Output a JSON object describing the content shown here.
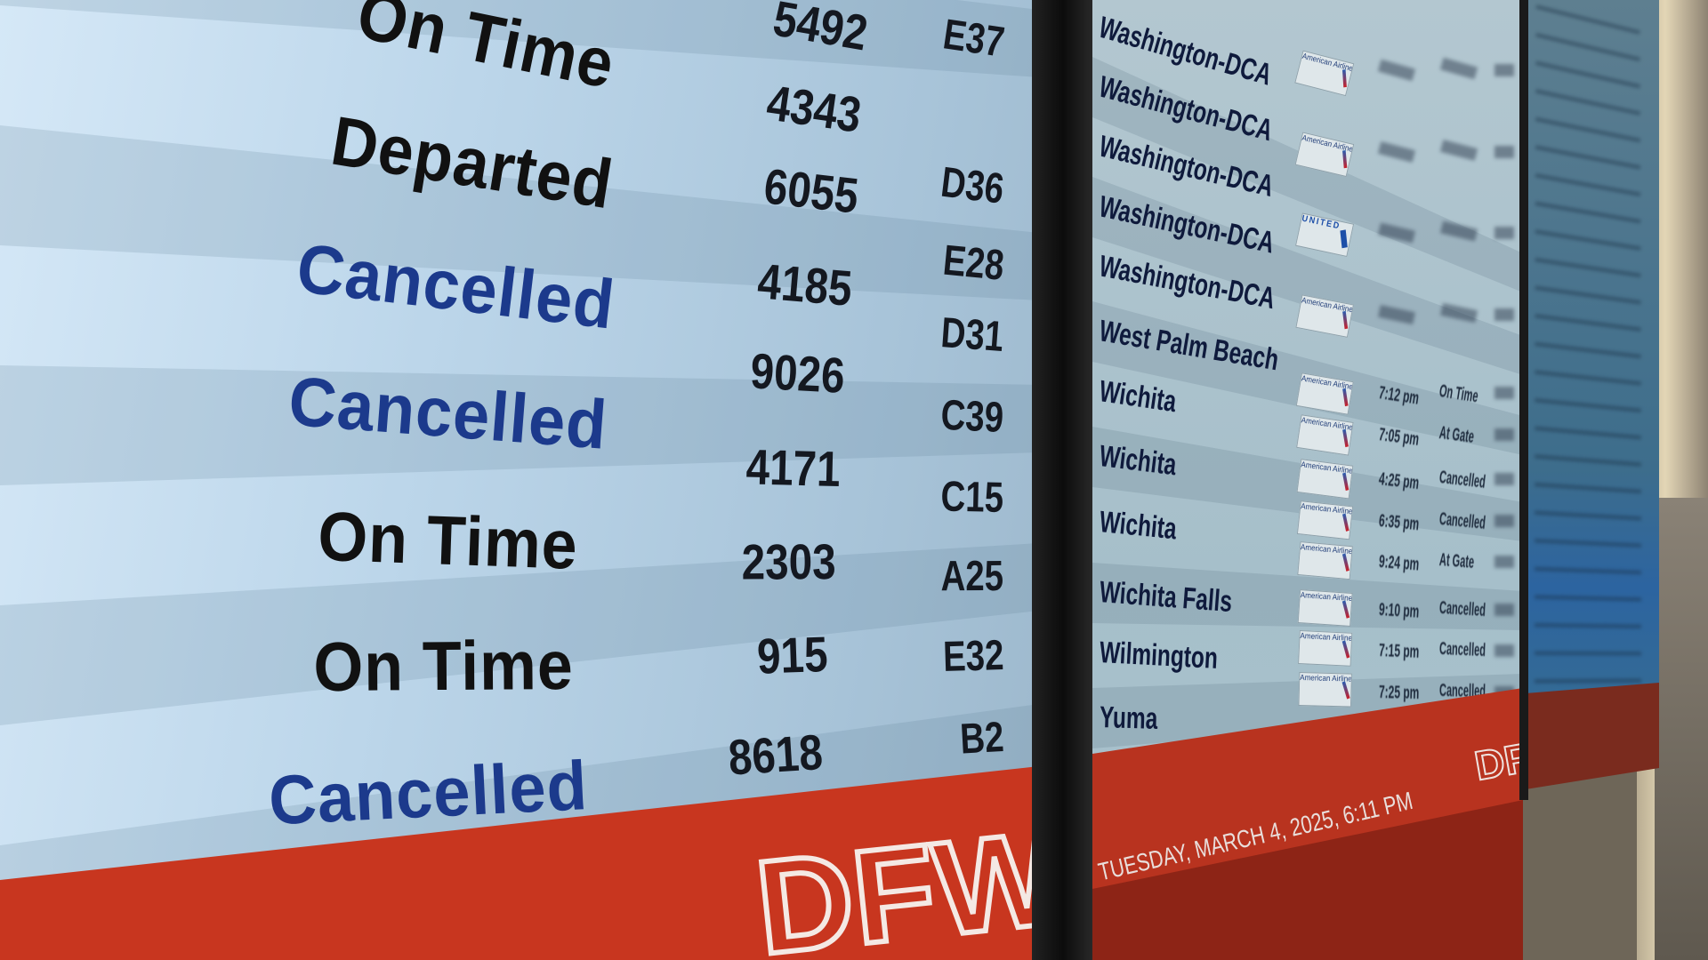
{
  "left_board": {
    "rows": [
      {
        "status": "",
        "flight": "5492",
        "gate": "E37"
      },
      {
        "status": "On Time",
        "flight": "4343",
        "gate": "D36"
      },
      {
        "status": "Departed",
        "flight": "6055",
        "gate": "E28"
      },
      {
        "status": "Cancelled",
        "flight": "4185",
        "gate": "D31"
      },
      {
        "status": "Cancelled",
        "flight": "9026",
        "gate": "C39"
      },
      {
        "status": "On Time",
        "flight": "4171",
        "gate": "C15"
      },
      {
        "status": "On Time",
        "flight": "2303",
        "gate": "A25"
      },
      {
        "status": "Cancelled",
        "flight": "915",
        "gate": "E32"
      },
      {
        "status": "",
        "flight": "8618",
        "gate": "B2"
      }
    ],
    "footer_logo": "DFW"
  },
  "right_board": {
    "rows": [
      {
        "city": "Washington-DCA",
        "airline": "American Airlines",
        "time": "",
        "status": ""
      },
      {
        "city": "Washington-DCA",
        "airline": "American Airlines",
        "time": "",
        "status": ""
      },
      {
        "city": "Washington-DCA",
        "airline": "United",
        "time": "",
        "status": ""
      },
      {
        "city": "Washington-DCA",
        "airline": "American Airlines",
        "time": "",
        "status": ""
      },
      {
        "city": "Washington-DCA",
        "airline": "American Airlines",
        "time": "7:12 pm",
        "status": "On Time"
      },
      {
        "city": "West Palm Beach",
        "airline": "American Airlines",
        "time": "7:05 pm",
        "status": "At Gate"
      },
      {
        "city": "Wichita",
        "airline": "American Airlines",
        "time": "4:25 pm",
        "status": "Cancelled"
      },
      {
        "city": "Wichita",
        "airline": "American Airlines",
        "time": "6:35 pm",
        "status": "Cancelled"
      },
      {
        "city": "Wichita",
        "airline": "American Airlines",
        "time": "9:24 pm",
        "status": "At Gate"
      },
      {
        "city": "Wichita Falls",
        "airline": "American Airlines",
        "time": "9:10 pm",
        "status": "Cancelled"
      },
      {
        "city": "Wilmington",
        "airline": "American Airlines",
        "time": "7:15 pm",
        "status": "Cancelled"
      },
      {
        "city": "Yuma",
        "airline": "American Airlines",
        "time": "7:25 pm",
        "status": "Cancelled"
      }
    ],
    "footer_datetime": "TUESDAY, MARCH 4, 2025, 6:11 PM",
    "footer_logo": "DFW"
  },
  "colors": {
    "cancelled_text": "#1c3a8c",
    "normal_text": "#111111",
    "footer_red": "#c8361f",
    "screen_blue": "#bcd6ea"
  }
}
